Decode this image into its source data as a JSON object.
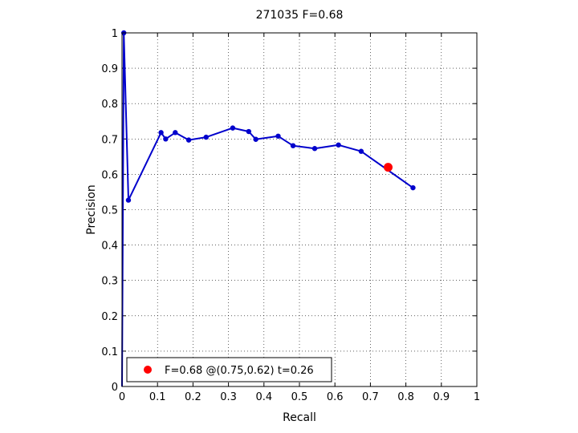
{
  "chart_data": {
    "type": "line",
    "title": "271035 F=0.68",
    "xlabel": "Recall",
    "ylabel": "Precision",
    "xlim": [
      0,
      1
    ],
    "ylim": [
      0,
      1
    ],
    "grid": true,
    "xticks": [
      0,
      0.1,
      0.2,
      0.3,
      0.4,
      0.5,
      0.6,
      0.7,
      0.8,
      0.9,
      1
    ],
    "yticks": [
      0,
      0.1,
      0.2,
      0.3,
      0.4,
      0.5,
      0.6,
      0.7,
      0.8,
      0.9,
      1
    ],
    "xtick_labels": [
      "0",
      "0.1",
      "0.2",
      "0.3",
      "0.4",
      "0.5",
      "0.6",
      "0.7",
      "0.8",
      "0.9",
      "1"
    ],
    "ytick_labels": [
      "0",
      "0.1",
      "0.2",
      "0.3",
      "0.4",
      "0.5",
      "0.6",
      "0.7",
      "0.8",
      "0.9",
      "1"
    ],
    "series": [
      {
        "color": "#0000cc",
        "x": [
          0,
          0.005,
          0.018,
          0.11,
          0.123,
          0.15,
          0.188,
          0.237,
          0.312,
          0.357,
          0.377,
          0.44,
          0.482,
          0.543,
          0.61,
          0.674,
          0.82
        ],
        "y": [
          0,
          1.0,
          0.527,
          0.718,
          0.7,
          0.718,
          0.697,
          0.705,
          0.731,
          0.721,
          0.699,
          0.708,
          0.681,
          0.673,
          0.683,
          0.665,
          0.562
        ]
      }
    ],
    "best_point": {
      "x": 0.75,
      "y": 0.62,
      "color": "#ff0000"
    },
    "legend": {
      "label": "F=0.68 @(0.75,0.62) t=0.26",
      "placement": "bottom-left"
    }
  }
}
